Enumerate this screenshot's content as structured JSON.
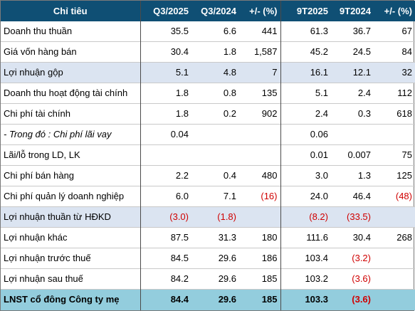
{
  "headers": {
    "label": "Chỉ tiêu",
    "q3_2025": "Q3/2025",
    "q3_2024": "Q3/2024",
    "q_change": "+/- (%)",
    "ytd_2025": "9T2025",
    "ytd_2024": "9T2024",
    "ytd_change": "+/- (%)"
  },
  "rows": [
    {
      "label": "Doanh thu thuần",
      "q3_2025": "35.5",
      "q3_2024": "6.6",
      "q_change": "441",
      "ytd_2025": "61.3",
      "ytd_2024": "36.7",
      "ytd_change": "67"
    },
    {
      "label": "Giá vốn hàng bán",
      "q3_2025": "30.4",
      "q3_2024": "1.8",
      "q_change": "1,587",
      "ytd_2025": "45.2",
      "ytd_2024": "24.5",
      "ytd_change": "84"
    },
    {
      "label": "Lợi nhuận gộp",
      "q3_2025": "5.1",
      "q3_2024": "4.8",
      "q_change": "7",
      "ytd_2025": "16.1",
      "ytd_2024": "12.1",
      "ytd_change": "32"
    },
    {
      "label": "Doanh thu hoạt động tài chính",
      "q3_2025": "1.8",
      "q3_2024": "0.8",
      "q_change": "135",
      "ytd_2025": "5.1",
      "ytd_2024": "2.4",
      "ytd_change": "112"
    },
    {
      "label": "Chi phí tài chính",
      "q3_2025": "1.8",
      "q3_2024": "0.2",
      "q_change": "902",
      "ytd_2025": "2.4",
      "ytd_2024": "0.3",
      "ytd_change": "618"
    },
    {
      "label": "- Trong đó : Chi phí lãi vay",
      "q3_2025": "0.04",
      "q3_2024": "",
      "q_change": "",
      "ytd_2025": "0.06",
      "ytd_2024": "",
      "ytd_change": ""
    },
    {
      "label": "Lãi/lỗ trong LD, LK",
      "q3_2025": "",
      "q3_2024": "",
      "q_change": "",
      "ytd_2025": "0.01",
      "ytd_2024": "0.007",
      "ytd_change": "75"
    },
    {
      "label": "Chi phí bán hàng",
      "q3_2025": "2.2",
      "q3_2024": "0.4",
      "q_change": "480",
      "ytd_2025": "3.0",
      "ytd_2024": "1.3",
      "ytd_change": "125"
    },
    {
      "label": "Chi phí quản lý doanh nghiệp",
      "q3_2025": "6.0",
      "q3_2024": "7.1",
      "q_change": "(16)",
      "ytd_2025": "24.0",
      "ytd_2024": "46.4",
      "ytd_change": "(48)"
    },
    {
      "label": "Lợi nhuận thuần từ HĐKD",
      "q3_2025": "(3.0)",
      "q3_2024": "(1.8)",
      "q_change": "",
      "ytd_2025": "(8.2)",
      "ytd_2024": "(33.5)",
      "ytd_change": ""
    },
    {
      "label": "Lợi nhuận khác",
      "q3_2025": "87.5",
      "q3_2024": "31.3",
      "q_change": "180",
      "ytd_2025": "111.6",
      "ytd_2024": "30.4",
      "ytd_change": "268"
    },
    {
      "label": "Lợi nhuận trước thuế",
      "q3_2025": "84.5",
      "q3_2024": "29.6",
      "q_change": "186",
      "ytd_2025": "103.4",
      "ytd_2024": "(3.2)",
      "ytd_change": ""
    },
    {
      "label": "Lợi nhuận sau thuế",
      "q3_2025": "84.2",
      "q3_2024": "29.6",
      "q_change": "185",
      "ytd_2025": "103.2",
      "ytd_2024": "(3.6)",
      "ytd_change": ""
    },
    {
      "label": "LNST cổ đông Công ty mẹ",
      "q3_2025": "84.4",
      "q3_2024": "29.6",
      "q_change": "185",
      "ytd_2025": "103.3",
      "ytd_2024": "(3.6)",
      "ytd_change": ""
    }
  ],
  "colors": {
    "header_bg": "#0f4f74",
    "highlight_row_bg": "#dbe4f1",
    "total_row_bg": "#93cddd",
    "negative_text": "#d00000"
  }
}
